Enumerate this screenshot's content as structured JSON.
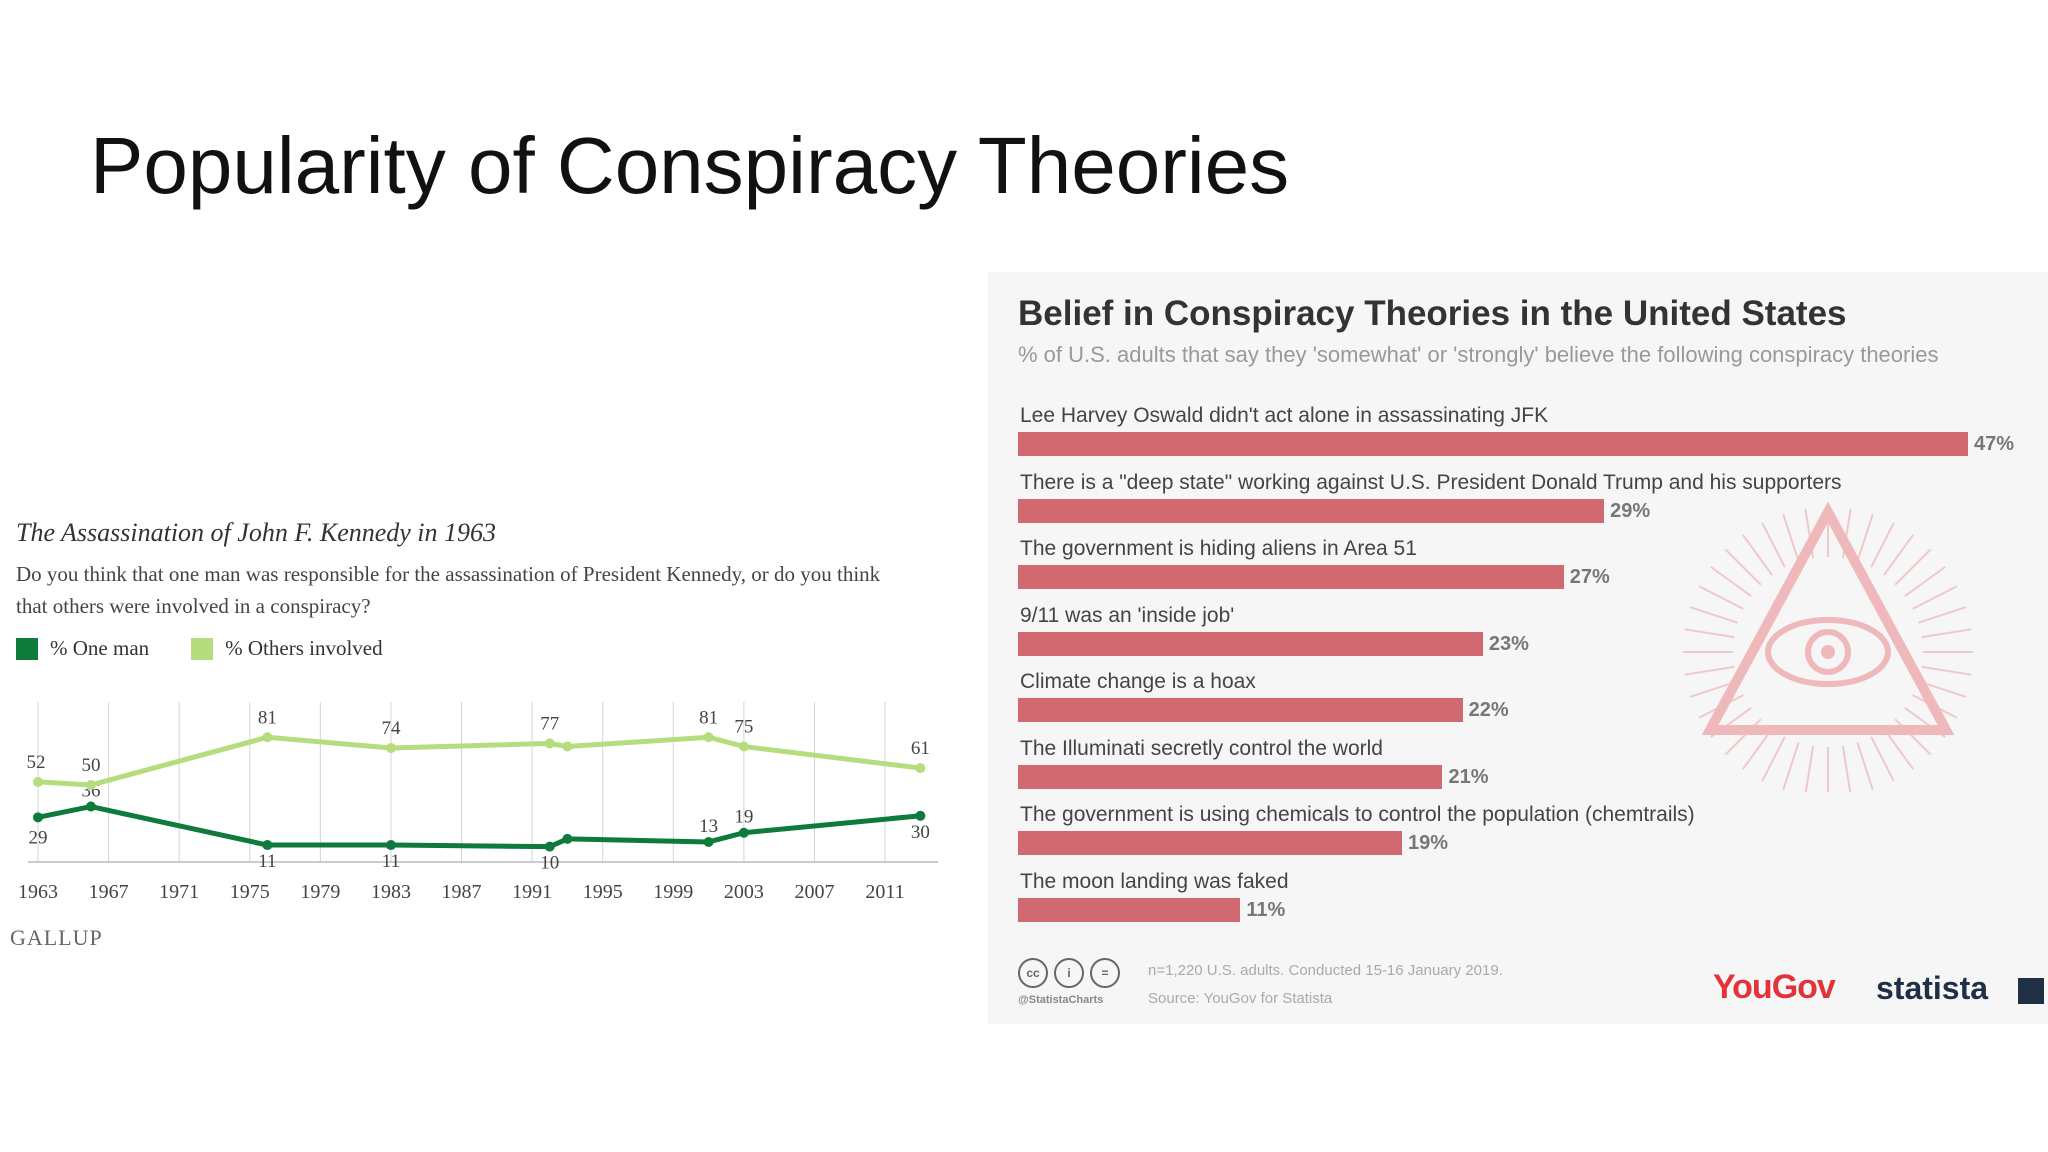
{
  "slide": {
    "title": "Popularity of Conspiracy Theories"
  },
  "chart_data": [
    {
      "type": "line",
      "title": "The Assassination of John F. Kennedy in 1963",
      "subtitle": "Do you think that one man was responsible for the assassination of President Kennedy, or do you think that others were involved in a conspiracy?",
      "xticks": [
        "1963",
        "1967",
        "1971",
        "1975",
        "1979",
        "1983",
        "1987",
        "1991",
        "1995",
        "1999",
        "2003",
        "2007",
        "2011"
      ],
      "xlim": [
        1963,
        2014
      ],
      "ylim": [
        0,
        100
      ],
      "grid": true,
      "legend_position": "top-left",
      "series": [
        {
          "name": "% One man",
          "color": "#0e7a3c",
          "x": [
            1963,
            1966,
            1976,
            1983,
            1992,
            1993,
            2001,
            2003,
            2013
          ],
          "values": [
            29,
            36,
            11,
            11,
            10,
            15,
            13,
            19,
            30
          ],
          "labels": [
            "29",
            "36",
            "11",
            "11",
            "10",
            "",
            "13",
            "19",
            "30"
          ]
        },
        {
          "name": "% Others involved",
          "color": "#b5dc7d",
          "x": [
            1963,
            1966,
            1976,
            1983,
            1992,
            1993,
            2001,
            2003,
            2013
          ],
          "values": [
            52,
            50,
            81,
            74,
            77,
            75,
            81,
            75,
            61
          ],
          "labels": [
            "52",
            "50",
            "81",
            "74",
            "77",
            "",
            "81",
            "75",
            "61"
          ]
        }
      ],
      "source": "GALLUP"
    },
    {
      "type": "bar",
      "orientation": "horizontal",
      "title": "Belief in Conspiracy Theories in the United States",
      "subtitle": "% of U.S. adults that say they 'somewhat' or 'strongly' believe the following conspiracy theories",
      "categories": [
        "Lee Harvey Oswald didn't act alone in assassinating JFK",
        "There is a \"deep state\" working against U.S. President Donald Trump and his supporters",
        "The government is hiding aliens in Area 51",
        "9/11 was an 'inside job'",
        "Climate change is a hoax",
        "The Illuminati secretly control the world",
        "The government is using chemicals to control the population (chemtrails)",
        "The moon landing was faked"
      ],
      "values": [
        47,
        29,
        27,
        23,
        22,
        21,
        19,
        11
      ],
      "value_labels": [
        "47%",
        "29%",
        "27%",
        "23%",
        "22%",
        "21%",
        "19%",
        "11%"
      ],
      "color": "#d16a70",
      "xlim": [
        0,
        47
      ],
      "note": "n=1,220 U.S. adults. Conducted 15-16 January 2019.",
      "source": "Source: YouGov for Statista",
      "handle": "@StatistaCharts",
      "brands": {
        "yougov": "YouGov",
        "statista": "statista"
      }
    }
  ]
}
